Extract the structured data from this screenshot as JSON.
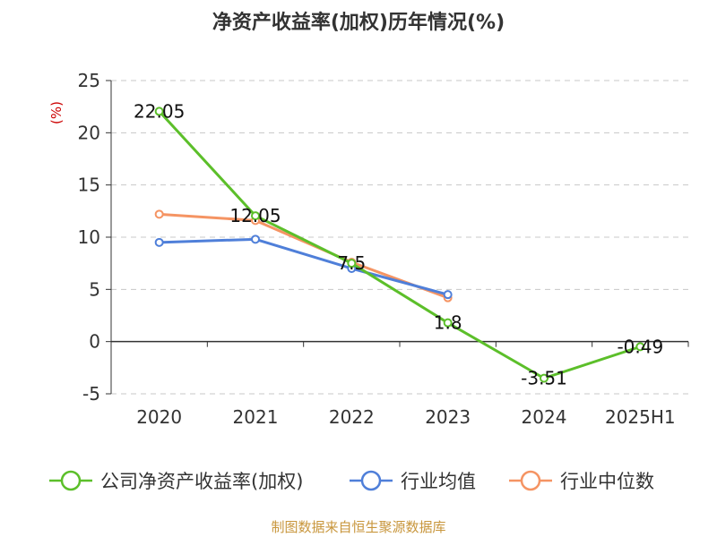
{
  "chart_data": {
    "type": "line",
    "title": "净资产收益率(加权)历年情况(%)",
    "unit_label": "(%)",
    "categories": [
      "2020",
      "2021",
      "2022",
      "2023",
      "2024",
      "2025H1"
    ],
    "y_ticks": [
      "25",
      "20",
      "15",
      "10",
      "5",
      "0",
      "-5"
    ],
    "ylim": [
      -5,
      25
    ],
    "grid": true,
    "legend_position": "bottom",
    "series": [
      {
        "name": "公司净资产收益率(加权)",
        "color": "#5cbf2a",
        "values": [
          22.05,
          12.05,
          7.5,
          1.8,
          -3.51,
          -0.49
        ],
        "labels": [
          "22.05",
          "12.05",
          "7.5",
          "1.8",
          "-3.51",
          "-0.49"
        ]
      },
      {
        "name": "行业均值",
        "color": "#4f7fd9",
        "values": [
          9.5,
          9.8,
          7.0,
          4.5,
          null,
          null
        ]
      },
      {
        "name": "行业中位数",
        "color": "#f59463",
        "values": [
          12.2,
          11.6,
          7.6,
          4.2,
          null,
          null
        ]
      }
    ]
  },
  "source": "制图数据来自恒生聚源数据库"
}
